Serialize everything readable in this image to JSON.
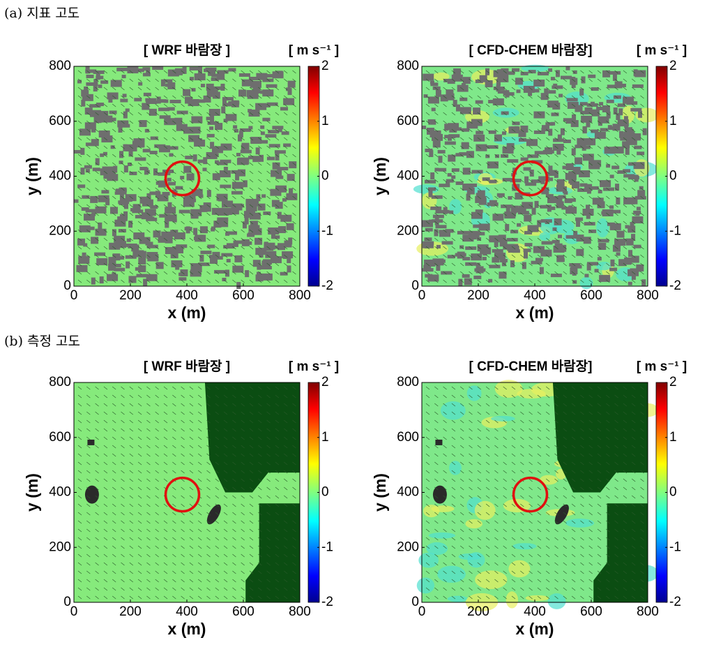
{
  "sections": [
    "(a) 지표 고도",
    "(b) 측정 고도"
  ],
  "chart_data": [
    {
      "type": "heatmap",
      "title": "[ WRF 바람장 ]",
      "xlabel": "x (m)",
      "ylabel": "y (m)",
      "xlim": [
        0,
        800
      ],
      "ylim": [
        0,
        800
      ],
      "xticks": [
        0,
        200,
        400,
        600,
        800
      ],
      "yticks": [
        0,
        200,
        400,
        600,
        800
      ],
      "colorbar_label": "[ m s⁻¹ ]",
      "clim": [
        -2,
        2
      ],
      "cticks": [
        -2,
        -1,
        0,
        1,
        2
      ],
      "colormap": "jet"
    },
    {
      "type": "heatmap",
      "title": "[ CFD-CHEM 바람장]",
      "xlabel": "x (m)",
      "ylabel": "y (m)",
      "xlim": [
        0,
        800
      ],
      "ylim": [
        0,
        800
      ],
      "xticks": [
        0,
        200,
        400,
        600,
        800
      ],
      "yticks": [
        0,
        200,
        400,
        600,
        800
      ],
      "colorbar_label": "[ m s⁻¹ ]",
      "clim": [
        -2,
        2
      ],
      "cticks": [
        -2,
        -1,
        0,
        1,
        2
      ],
      "colormap": "jet"
    },
    {
      "type": "heatmap",
      "title": "[ WRF 바람장 ]",
      "xlabel": "x (m)",
      "ylabel": "y (m)",
      "xlim": [
        0,
        800
      ],
      "ylim": [
        0,
        800
      ],
      "xticks": [
        0,
        200,
        400,
        600,
        800
      ],
      "yticks": [
        0,
        200,
        400,
        600,
        800
      ],
      "colorbar_label": "[ m s⁻¹ ]",
      "clim": [
        -2,
        2
      ],
      "cticks": [
        -2,
        -1,
        0,
        1,
        2
      ],
      "colormap": "jet"
    },
    {
      "type": "heatmap",
      "title": "[ CFD-CHEM 바람장]",
      "xlabel": "x (m)",
      "ylabel": "y (m)",
      "xlim": [
        0,
        800
      ],
      "ylim": [
        0,
        800
      ],
      "xticks": [
        0,
        200,
        400,
        600,
        800
      ],
      "yticks": [
        0,
        200,
        400,
        600,
        800
      ],
      "colorbar_label": "[ m s⁻¹ ]",
      "clim": [
        -2,
        2
      ],
      "cticks": [
        -2,
        -1,
        0,
        1,
        2
      ],
      "colormap": "jet"
    }
  ]
}
